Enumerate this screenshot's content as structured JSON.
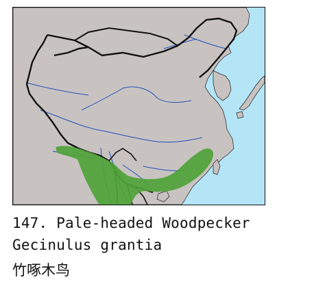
{
  "caption": {
    "entry": "147. Pale-headed Woodpecker",
    "scientific_name": "Gecinulus grantia",
    "chinese_name": "竹啄木鸟"
  },
  "map": {
    "colors": {
      "land": "#c8c3c0",
      "sea": "#b3e5f7",
      "range": "#4fa33a",
      "rivers": "#1f4fbf",
      "borders": "#111111"
    }
  }
}
